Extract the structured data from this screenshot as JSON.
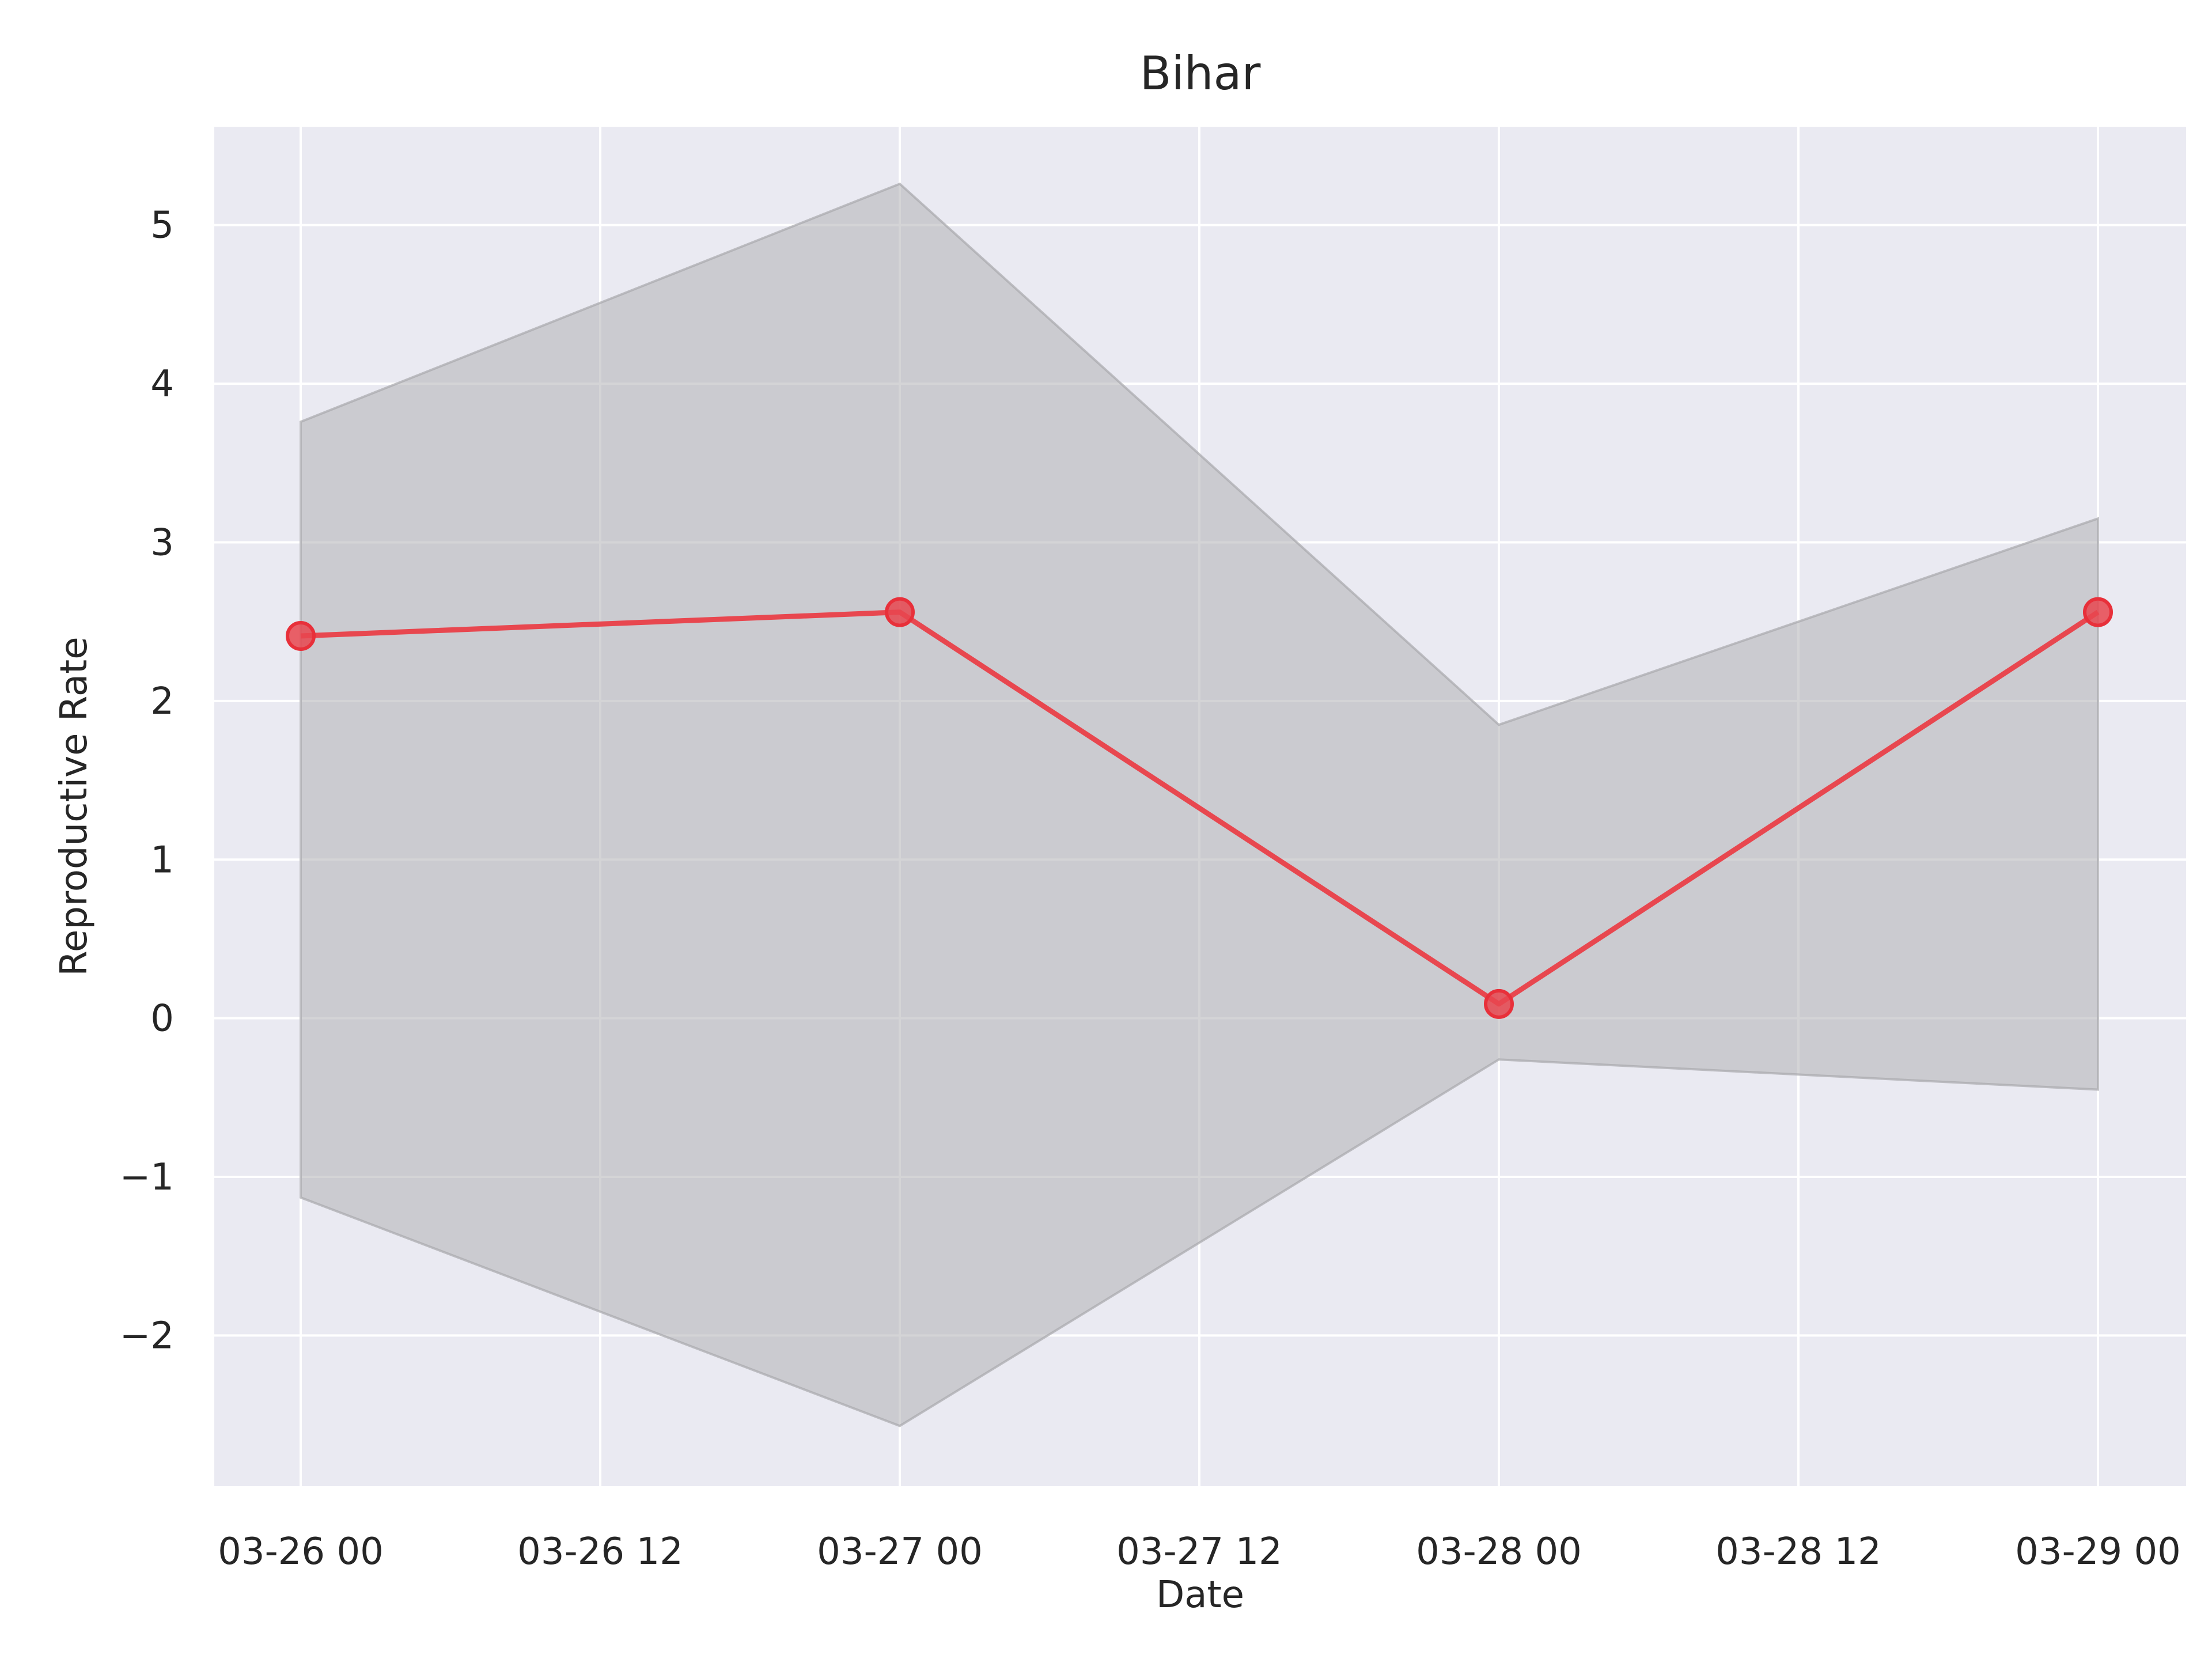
{
  "chart_data": {
    "type": "line",
    "title": "Bihar",
    "xlabel": "Date",
    "ylabel": "Reproductive Rate",
    "x": [
      "2020-03-26 00:00",
      "2020-03-27 00:00",
      "2020-03-28 00:00",
      "2020-03-29 00:00"
    ],
    "x_tick_labels": [
      "03-26 00",
      "03-26 12",
      "03-27 00",
      "03-27 12",
      "03-28 00",
      "03-28 12",
      "03-29 00"
    ],
    "y_ticks": [
      -2,
      -1,
      0,
      1,
      2,
      3,
      4,
      5
    ],
    "y_tick_labels": [
      "−2",
      "−1",
      "0",
      "1",
      "2",
      "3",
      "4",
      "5"
    ],
    "ylim": [
      -2.95,
      5.62
    ],
    "series": [
      {
        "values": [
          2.41,
          2.56,
          0.09,
          2.56
        ],
        "color": "#e8474f",
        "markers": true
      }
    ],
    "band": {
      "lower": [
        -1.13,
        -2.57,
        -0.26,
        -0.45
      ],
      "upper": [
        3.76,
        5.26,
        1.85,
        3.15
      ],
      "color": "#b0b0b4"
    },
    "grid": true,
    "legend": false,
    "background": "#eaeaf2"
  }
}
